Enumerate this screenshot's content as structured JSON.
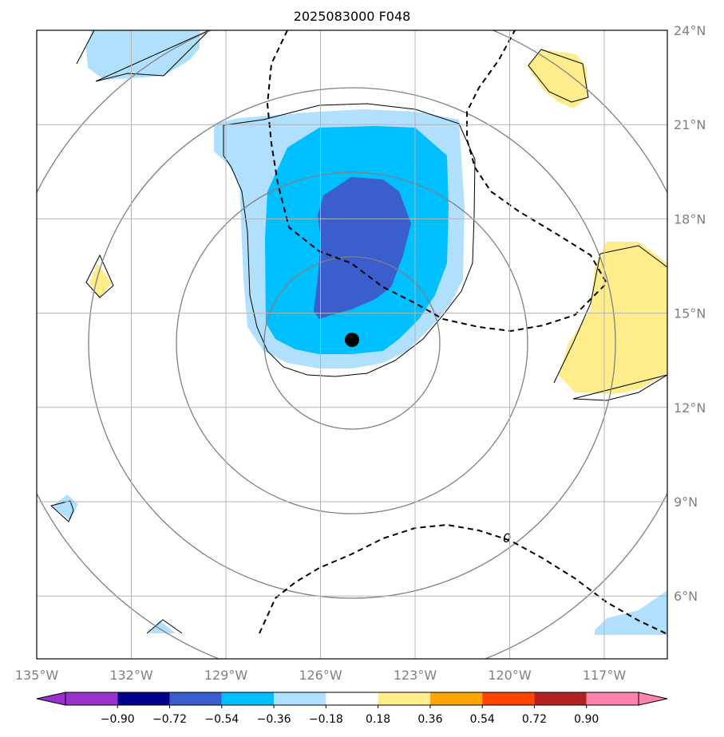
{
  "chart_data": {
    "type": "map",
    "title": "2025083000 F048",
    "lon_range": [
      -135,
      -115
    ],
    "lat_range": [
      4,
      24
    ],
    "x_ticks": [
      "135°W",
      "132°W",
      "129°W",
      "126°W",
      "123°W",
      "120°W",
      "117°W"
    ],
    "x_tick_values": [
      -135,
      -132,
      -129,
      -126,
      -123,
      -120,
      -117
    ],
    "y_ticks": [
      "6°N",
      "9°N",
      "12°N",
      "15°N",
      "18°N",
      "21°N",
      "24°N"
    ],
    "y_tick_values": [
      6,
      9,
      12,
      15,
      18,
      21,
      24
    ],
    "grid": true,
    "center_marker": {
      "lon": -125.0,
      "lat": 14.15
    },
    "colorbar": {
      "ticks": [
        "−0.90",
        "−0.72",
        "−0.54",
        "−0.36",
        "−0.18",
        "0.18",
        "0.36",
        "0.54",
        "0.72",
        "0.90"
      ],
      "levels": [
        -0.9,
        -0.72,
        -0.54,
        -0.36,
        -0.18,
        0.18,
        0.36,
        0.54,
        0.72,
        0.9
      ],
      "colors": [
        "#9932cc",
        "#00008b",
        "#3a5fcd",
        "#00bfff",
        "#b0e0fe",
        "#ffffff",
        "#ffec8b",
        "#ffa500",
        "#ff4500",
        "#b22222",
        "#ff82ab"
      ]
    },
    "zero_contour_label": "0",
    "fill_colors": {
      "light_blue": "#b0e0fe",
      "mid_blue": "#00bfff",
      "dark_blue": "#3a5fcd",
      "yellow": "#ffec8b"
    },
    "range_rings_center": {
      "lon": -125.0,
      "lat": 14.15
    },
    "range_rings_deg": [
      3,
      6,
      9,
      12
    ]
  }
}
